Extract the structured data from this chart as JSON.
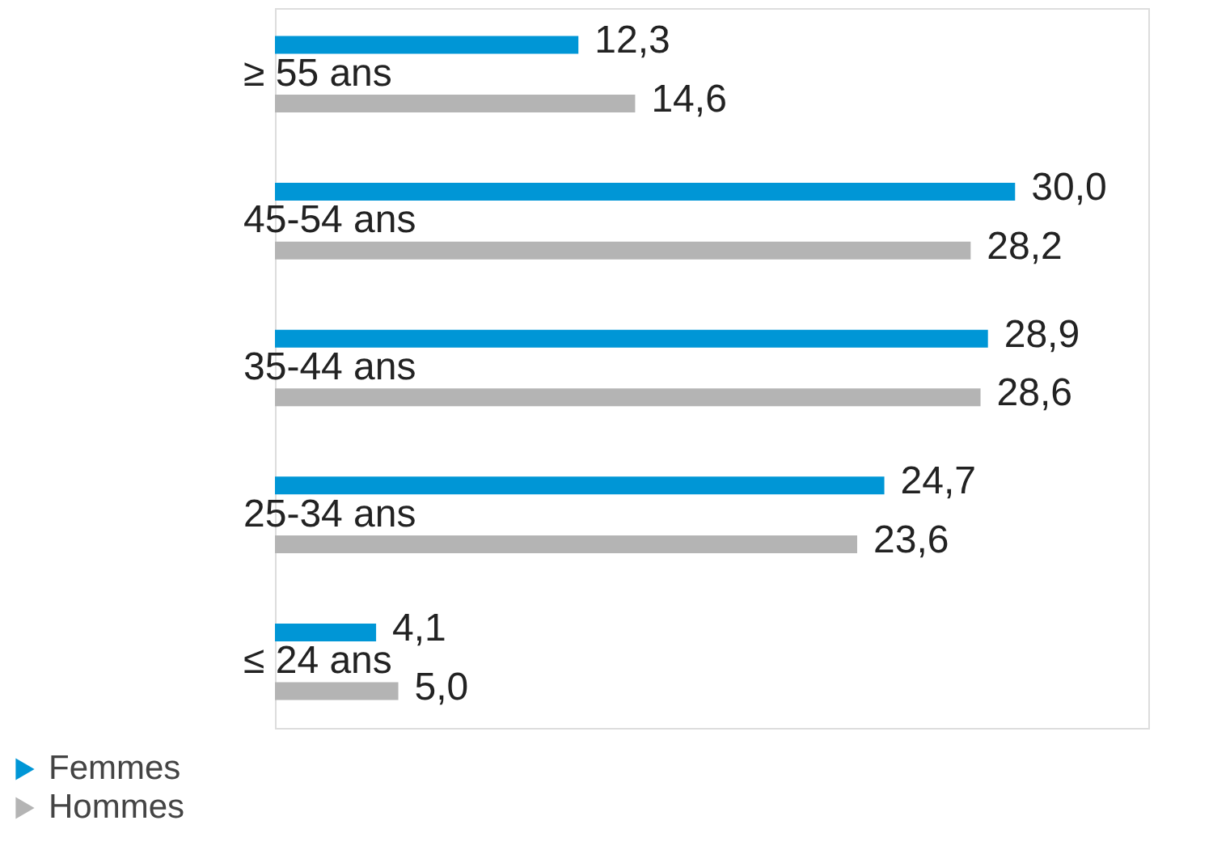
{
  "chart_data": {
    "type": "bar",
    "orientation": "horizontal",
    "categories": [
      "≥ 55 ans",
      "45-54 ans",
      "35-44 ans",
      "25-34 ans",
      "≤ 24 ans"
    ],
    "series": [
      {
        "name": "Femmes",
        "color": "#0096d6",
        "values": [
          12.3,
          30.0,
          28.9,
          24.7,
          4.1
        ],
        "value_labels": [
          "12,3",
          "30,0",
          "28,9",
          "24,7",
          "4,1"
        ]
      },
      {
        "name": "Hommes",
        "color": "#b4b4b4",
        "values": [
          14.6,
          28.2,
          28.6,
          23.6,
          5.0
        ],
        "value_labels": [
          "14,6",
          "28,2",
          "28,6",
          "23,6",
          "5,0"
        ]
      }
    ],
    "legend": "bottom left",
    "grid": false
  }
}
